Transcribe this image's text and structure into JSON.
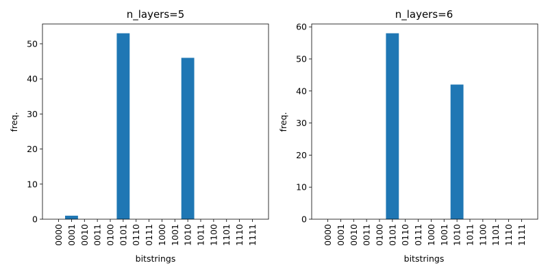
{
  "colors": {
    "bar": "#1f77b4"
  },
  "chart_data": [
    {
      "type": "bar",
      "title": "n_layers=5",
      "xlabel": "bitstrings",
      "ylabel": "freq.",
      "categories": [
        "0000",
        "0001",
        "0010",
        "0011",
        "0100",
        "0101",
        "0110",
        "0111",
        "1000",
        "1001",
        "1010",
        "1011",
        "1100",
        "1101",
        "1110",
        "1111"
      ],
      "values": [
        0,
        1,
        0,
        0,
        0,
        53,
        0,
        0,
        0,
        0,
        46,
        0,
        0,
        0,
        0,
        0
      ],
      "yticks": [
        0,
        10,
        20,
        30,
        40,
        50
      ],
      "ylim": [
        0,
        55.65
      ],
      "grid": false
    },
    {
      "type": "bar",
      "title": "n_layers=6",
      "xlabel": "bitstrings",
      "ylabel": "freq.",
      "categories": [
        "0000",
        "0001",
        "0010",
        "0011",
        "0100",
        "0101",
        "0110",
        "0111",
        "1000",
        "1001",
        "1010",
        "1011",
        "1100",
        "1101",
        "1110",
        "1111"
      ],
      "values": [
        0,
        0,
        0,
        0,
        0,
        58,
        0,
        0,
        0,
        0,
        42,
        0,
        0,
        0,
        0,
        0
      ],
      "yticks": [
        0,
        10,
        20,
        30,
        40,
        50,
        60
      ],
      "ylim": [
        0,
        60.9
      ],
      "grid": false
    }
  ]
}
